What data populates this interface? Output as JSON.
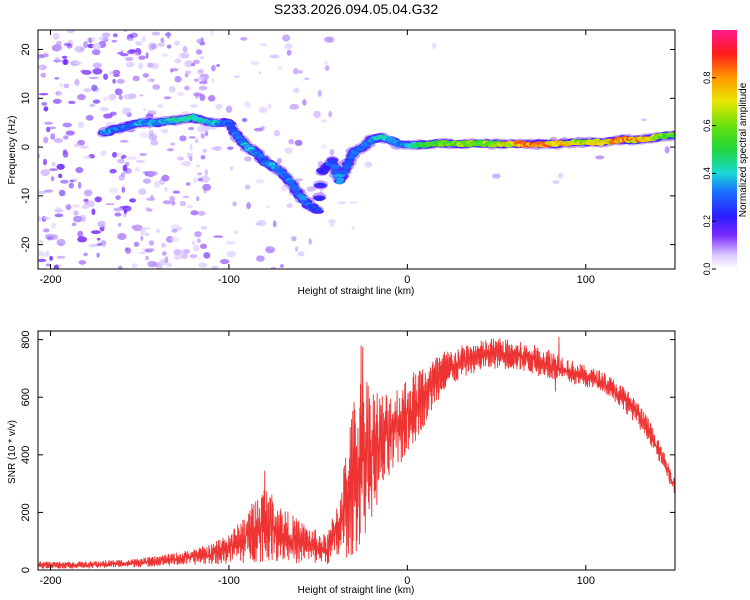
{
  "title": "S233.2026.094.05.04.G32",
  "chart_data": [
    {
      "type": "heatmap",
      "xlabel": "Height of straight line (km)",
      "ylabel": "Frequency (Hz)",
      "xlim": [
        -207,
        150
      ],
      "ylim": [
        -25,
        24
      ],
      "xticks": [
        -200,
        -100,
        0,
        100
      ],
      "yticks": [
        20,
        10,
        0,
        -10,
        -20
      ],
      "colorbar": {
        "label": "Normalized spectral amplitude",
        "range": [
          0,
          1
        ],
        "ticks": [
          0.0,
          0.2,
          0.4,
          0.6,
          0.8
        ],
        "tick_labels": [
          "0.0",
          "0.2",
          "0.4",
          "0.6",
          "0.8"
        ]
      },
      "ridge": [
        {
          "x": -170,
          "y": 3,
          "amp": 0.35
        },
        {
          "x": -160,
          "y": 4,
          "amp": 0.3
        },
        {
          "x": -150,
          "y": 5,
          "amp": 0.35
        },
        {
          "x": -140,
          "y": 5,
          "amp": 0.35
        },
        {
          "x": -130,
          "y": 5.5,
          "amp": 0.4
        },
        {
          "x": -120,
          "y": 6,
          "amp": 0.45
        },
        {
          "x": -110,
          "y": 5,
          "amp": 0.4
        },
        {
          "x": -100,
          "y": 5,
          "amp": 0.3
        },
        {
          "x": -95,
          "y": 2,
          "amp": 0.3
        },
        {
          "x": -90,
          "y": 0,
          "amp": 0.4
        },
        {
          "x": -85,
          "y": -1,
          "amp": 0.35
        },
        {
          "x": -80,
          "y": -3,
          "amp": 0.3
        },
        {
          "x": -75,
          "y": -4,
          "amp": 0.35
        },
        {
          "x": -68,
          "y": -6,
          "amp": 0.3
        },
        {
          "x": -60,
          "y": -10,
          "amp": 0.35
        },
        {
          "x": -55,
          "y": -12,
          "amp": 0.3
        },
        {
          "x": -50,
          "y": -13,
          "amp": 0.25
        },
        {
          "x": -48,
          "y": -5,
          "amp": 0.2
        },
        {
          "x": -42,
          "y": -3,
          "amp": 0.3
        },
        {
          "x": -38,
          "y": -7,
          "amp": 0.35
        },
        {
          "x": -34,
          "y": -4,
          "amp": 0.3
        },
        {
          "x": -30,
          "y": -1,
          "amp": 0.3
        },
        {
          "x": -25,
          "y": 0,
          "amp": 0.3
        },
        {
          "x": -20,
          "y": 1.5,
          "amp": 0.35
        },
        {
          "x": -15,
          "y": 2,
          "amp": 0.4
        },
        {
          "x": -10,
          "y": 1.5,
          "amp": 0.35
        },
        {
          "x": -5,
          "y": 0.5,
          "amp": 0.3
        },
        {
          "x": 0,
          "y": 0.5,
          "amp": 0.35
        },
        {
          "x": 10,
          "y": 0.5,
          "amp": 0.5
        },
        {
          "x": 20,
          "y": 0.8,
          "amp": 0.55
        },
        {
          "x": 30,
          "y": 0.6,
          "amp": 0.6
        },
        {
          "x": 40,
          "y": 0.8,
          "amp": 0.6
        },
        {
          "x": 50,
          "y": 0.6,
          "amp": 0.65
        },
        {
          "x": 60,
          "y": 0.6,
          "amp": 0.75
        },
        {
          "x": 70,
          "y": 0.6,
          "amp": 0.8
        },
        {
          "x": 80,
          "y": 0.6,
          "amp": 0.75
        },
        {
          "x": 90,
          "y": 0.8,
          "amp": 0.7
        },
        {
          "x": 100,
          "y": 1,
          "amp": 0.65
        },
        {
          "x": 110,
          "y": 1,
          "amp": 0.7
        },
        {
          "x": 120,
          "y": 1.5,
          "amp": 0.8
        },
        {
          "x": 130,
          "y": 1.5,
          "amp": 0.75
        },
        {
          "x": 140,
          "y": 2,
          "amp": 0.6
        },
        {
          "x": 150,
          "y": 2.5,
          "amp": 0.55
        }
      ]
    },
    {
      "type": "line",
      "xlabel": "Height of straight line (km)",
      "ylabel": "SNR (10 * v/v)",
      "xlim": [
        -207,
        150
      ],
      "ylim": [
        0,
        830
      ],
      "xticks": [
        -200,
        -100,
        0,
        100
      ],
      "yticks": [
        0,
        200,
        400,
        600,
        800
      ],
      "color": "#ee3333",
      "envelope": [
        {
          "x": -207,
          "lo": 5,
          "hi": 30
        },
        {
          "x": -180,
          "lo": 5,
          "hi": 30
        },
        {
          "x": -150,
          "lo": 10,
          "hi": 40
        },
        {
          "x": -130,
          "lo": 15,
          "hi": 60
        },
        {
          "x": -110,
          "lo": 20,
          "hi": 90
        },
        {
          "x": -95,
          "lo": 20,
          "hi": 160
        },
        {
          "x": -80,
          "lo": 30,
          "hi": 300
        },
        {
          "x": -70,
          "lo": 30,
          "hi": 220
        },
        {
          "x": -60,
          "lo": 20,
          "hi": 170
        },
        {
          "x": -45,
          "lo": 20,
          "hi": 120
        },
        {
          "x": -38,
          "lo": 30,
          "hi": 280
        },
        {
          "x": -30,
          "lo": 50,
          "hi": 600
        },
        {
          "x": -25,
          "lo": 100,
          "hi": 700
        },
        {
          "x": -15,
          "lo": 250,
          "hi": 620
        },
        {
          "x": -5,
          "lo": 350,
          "hi": 650
        },
        {
          "x": 5,
          "lo": 450,
          "hi": 700
        },
        {
          "x": 20,
          "lo": 620,
          "hi": 760
        },
        {
          "x": 35,
          "lo": 680,
          "hi": 790
        },
        {
          "x": 50,
          "lo": 700,
          "hi": 810
        },
        {
          "x": 65,
          "lo": 690,
          "hi": 790
        },
        {
          "x": 80,
          "lo": 660,
          "hi": 770
        },
        {
          "x": 95,
          "lo": 640,
          "hi": 720
        },
        {
          "x": 110,
          "lo": 620,
          "hi": 690
        },
        {
          "x": 125,
          "lo": 530,
          "hi": 620
        },
        {
          "x": 135,
          "lo": 450,
          "hi": 530
        },
        {
          "x": 143,
          "lo": 350,
          "hi": 420
        },
        {
          "x": 150,
          "lo": 260,
          "hi": 320
        }
      ],
      "spikes": [
        {
          "x": -80,
          "y": 345
        },
        {
          "x": -25,
          "y": 775
        },
        {
          "x": -26,
          "y": 780
        },
        {
          "x": 85,
          "y": 810
        },
        {
          "x": 83,
          "y": 620
        }
      ]
    }
  ]
}
